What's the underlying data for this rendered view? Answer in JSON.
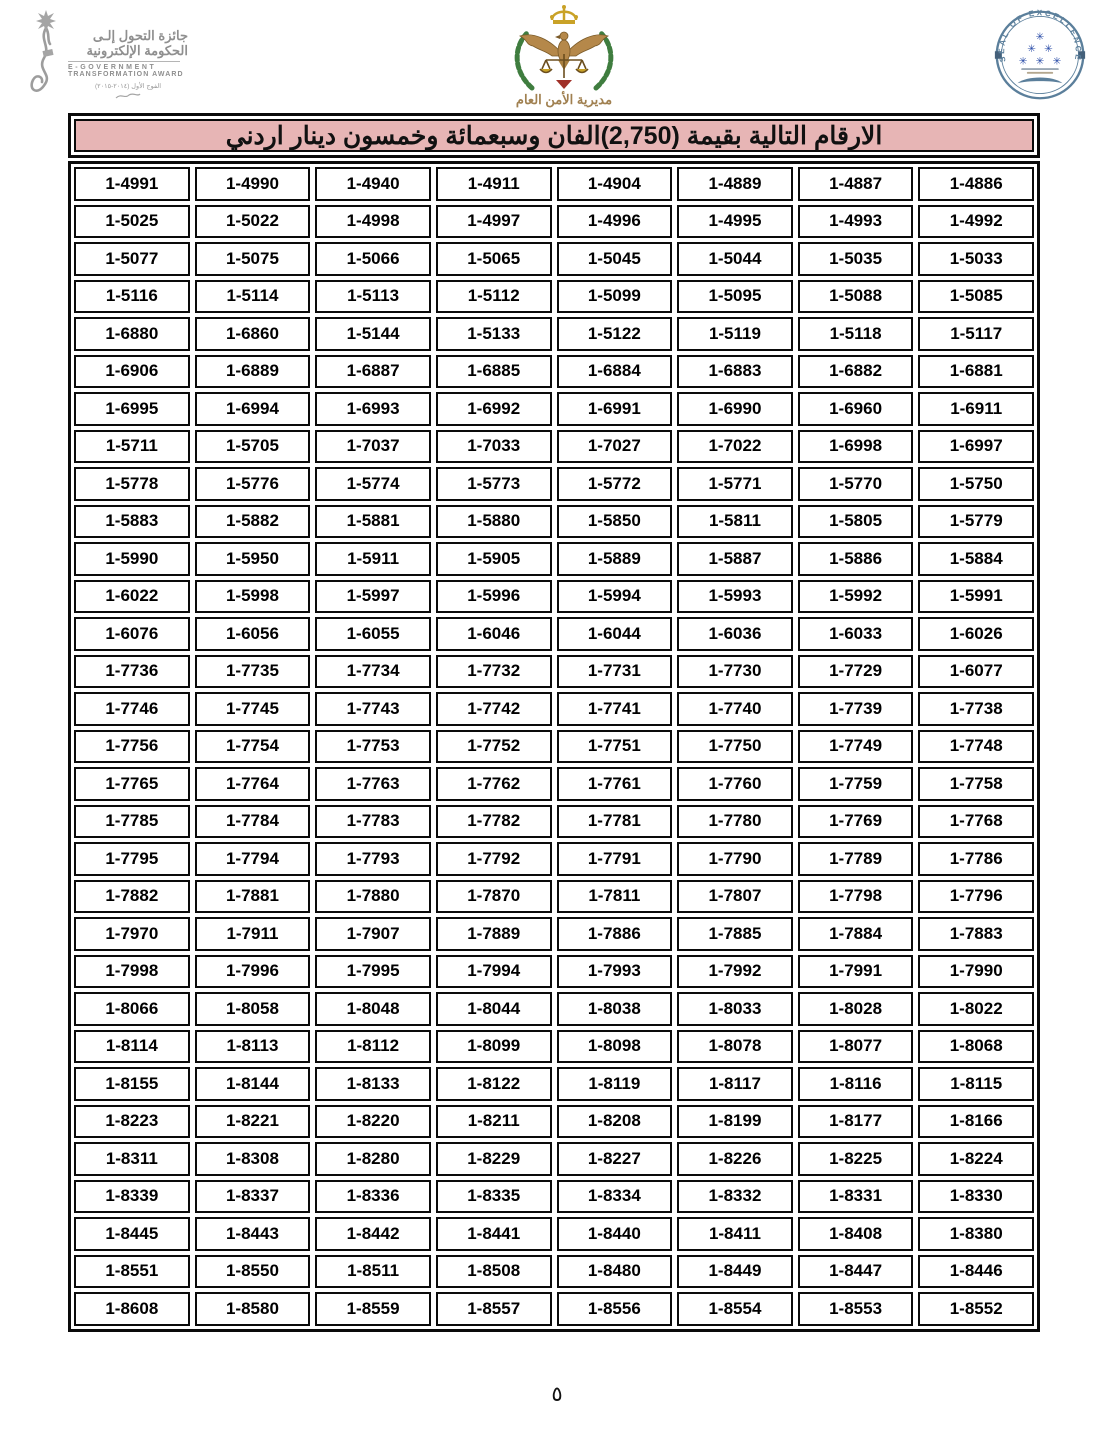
{
  "header": {
    "award_logo": {
      "arabic_line1": "جائزة التحول إلـى",
      "arabic_line2": "الحكومة الإلكترونية",
      "english_line1": "E-GOVERNMENT",
      "english_line2": "TRANSFORMATION AWARD",
      "small_print": "الفوج الأول (٢٠١٤-٢٠١٥)"
    },
    "psd_emblem": {
      "caption": "مديرية الأمن العام"
    },
    "seal": {
      "arc_text": "SEAL OF EXCELLENCE"
    }
  },
  "title_bar": {
    "text": "الارقام التالية بقيمة  (2,750)الفان وسبعمائة وخمسون دينار اردني",
    "value_shown": "2,750"
  },
  "table": {
    "columns": 8,
    "rows": [
      [
        "1-4991",
        "1-4990",
        "1-4940",
        "1-4911",
        "1-4904",
        "1-4889",
        "1-4887",
        "1-4886"
      ],
      [
        "1-5025",
        "1-5022",
        "1-4998",
        "1-4997",
        "1-4996",
        "1-4995",
        "1-4993",
        "1-4992"
      ],
      [
        "1-5077",
        "1-5075",
        "1-5066",
        "1-5065",
        "1-5045",
        "1-5044",
        "1-5035",
        "1-5033"
      ],
      [
        "1-5116",
        "1-5114",
        "1-5113",
        "1-5112",
        "1-5099",
        "1-5095",
        "1-5088",
        "1-5085"
      ],
      [
        "1-6880",
        "1-6860",
        "1-5144",
        "1-5133",
        "1-5122",
        "1-5119",
        "1-5118",
        "1-5117"
      ],
      [
        "1-6906",
        "1-6889",
        "1-6887",
        "1-6885",
        "1-6884",
        "1-6883",
        "1-6882",
        "1-6881"
      ],
      [
        "1-6995",
        "1-6994",
        "1-6993",
        "1-6992",
        "1-6991",
        "1-6990",
        "1-6960",
        "1-6911"
      ],
      [
        "1-5711",
        "1-5705",
        "1-7037",
        "1-7033",
        "1-7027",
        "1-7022",
        "1-6998",
        "1-6997"
      ],
      [
        "1-5778",
        "1-5776",
        "1-5774",
        "1-5773",
        "1-5772",
        "1-5771",
        "1-5770",
        "1-5750"
      ],
      [
        "1-5883",
        "1-5882",
        "1-5881",
        "1-5880",
        "1-5850",
        "1-5811",
        "1-5805",
        "1-5779"
      ],
      [
        "1-5990",
        "1-5950",
        "1-5911",
        "1-5905",
        "1-5889",
        "1-5887",
        "1-5886",
        "1-5884"
      ],
      [
        "1-6022",
        "1-5998",
        "1-5997",
        "1-5996",
        "1-5994",
        "1-5993",
        "1-5992",
        "1-5991"
      ],
      [
        "1-6076",
        "1-6056",
        "1-6055",
        "1-6046",
        "1-6044",
        "1-6036",
        "1-6033",
        "1-6026"
      ],
      [
        "1-7736",
        "1-7735",
        "1-7734",
        "1-7732",
        "1-7731",
        "1-7730",
        "1-7729",
        "1-6077"
      ],
      [
        "1-7746",
        "1-7745",
        "1-7743",
        "1-7742",
        "1-7741",
        "1-7740",
        "1-7739",
        "1-7738"
      ],
      [
        "1-7756",
        "1-7754",
        "1-7753",
        "1-7752",
        "1-7751",
        "1-7750",
        "1-7749",
        "1-7748"
      ],
      [
        "1-7765",
        "1-7764",
        "1-7763",
        "1-7762",
        "1-7761",
        "1-7760",
        "1-7759",
        "1-7758"
      ],
      [
        "1-7785",
        "1-7784",
        "1-7783",
        "1-7782",
        "1-7781",
        "1-7780",
        "1-7769",
        "1-7768"
      ],
      [
        "1-7795",
        "1-7794",
        "1-7793",
        "1-7792",
        "1-7791",
        "1-7790",
        "1-7789",
        "1-7786"
      ],
      [
        "1-7882",
        "1-7881",
        "1-7880",
        "1-7870",
        "1-7811",
        "1-7807",
        "1-7798",
        "1-7796"
      ],
      [
        "1-7970",
        "1-7911",
        "1-7907",
        "1-7889",
        "1-7886",
        "1-7885",
        "1-7884",
        "1-7883"
      ],
      [
        "1-7998",
        "1-7996",
        "1-7995",
        "1-7994",
        "1-7993",
        "1-7992",
        "1-7991",
        "1-7990"
      ],
      [
        "1-8066",
        "1-8058",
        "1-8048",
        "1-8044",
        "1-8038",
        "1-8033",
        "1-8028",
        "1-8022"
      ],
      [
        "1-8114",
        "1-8113",
        "1-8112",
        "1-8099",
        "1-8098",
        "1-8078",
        "1-8077",
        "1-8068"
      ],
      [
        "1-8155",
        "1-8144",
        "1-8133",
        "1-8122",
        "1-8119",
        "1-8117",
        "1-8116",
        "1-8115"
      ],
      [
        "1-8223",
        "1-8221",
        "1-8220",
        "1-8211",
        "1-8208",
        "1-8199",
        "1-8177",
        "1-8166"
      ],
      [
        "1-8311",
        "1-8308",
        "1-8280",
        "1-8229",
        "1-8227",
        "1-8226",
        "1-8225",
        "1-8224"
      ],
      [
        "1-8339",
        "1-8337",
        "1-8336",
        "1-8335",
        "1-8334",
        "1-8332",
        "1-8331",
        "1-8330"
      ],
      [
        "1-8445",
        "1-8443",
        "1-8442",
        "1-8441",
        "1-8440",
        "1-8411",
        "1-8408",
        "1-8380"
      ],
      [
        "1-8551",
        "1-8550",
        "1-8511",
        "1-8508",
        "1-8480",
        "1-8449",
        "1-8447",
        "1-8446"
      ],
      [
        "1-8608",
        "1-8580",
        "1-8559",
        "1-8557",
        "1-8556",
        "1-8554",
        "1-8553",
        "1-8552"
      ]
    ]
  },
  "footer": {
    "page_number": "٥"
  },
  "colors": {
    "title_bg": "#e7b5b5",
    "border_black": "#0a0a0a",
    "seal_blue": "#5b7f9b",
    "star_blue": "#2b4da8",
    "wreath_green": "#3f7d3f",
    "crown_gold": "#c9a227",
    "eagle_tan": "#b5884a",
    "award_gray": "#8f8f8f"
  }
}
